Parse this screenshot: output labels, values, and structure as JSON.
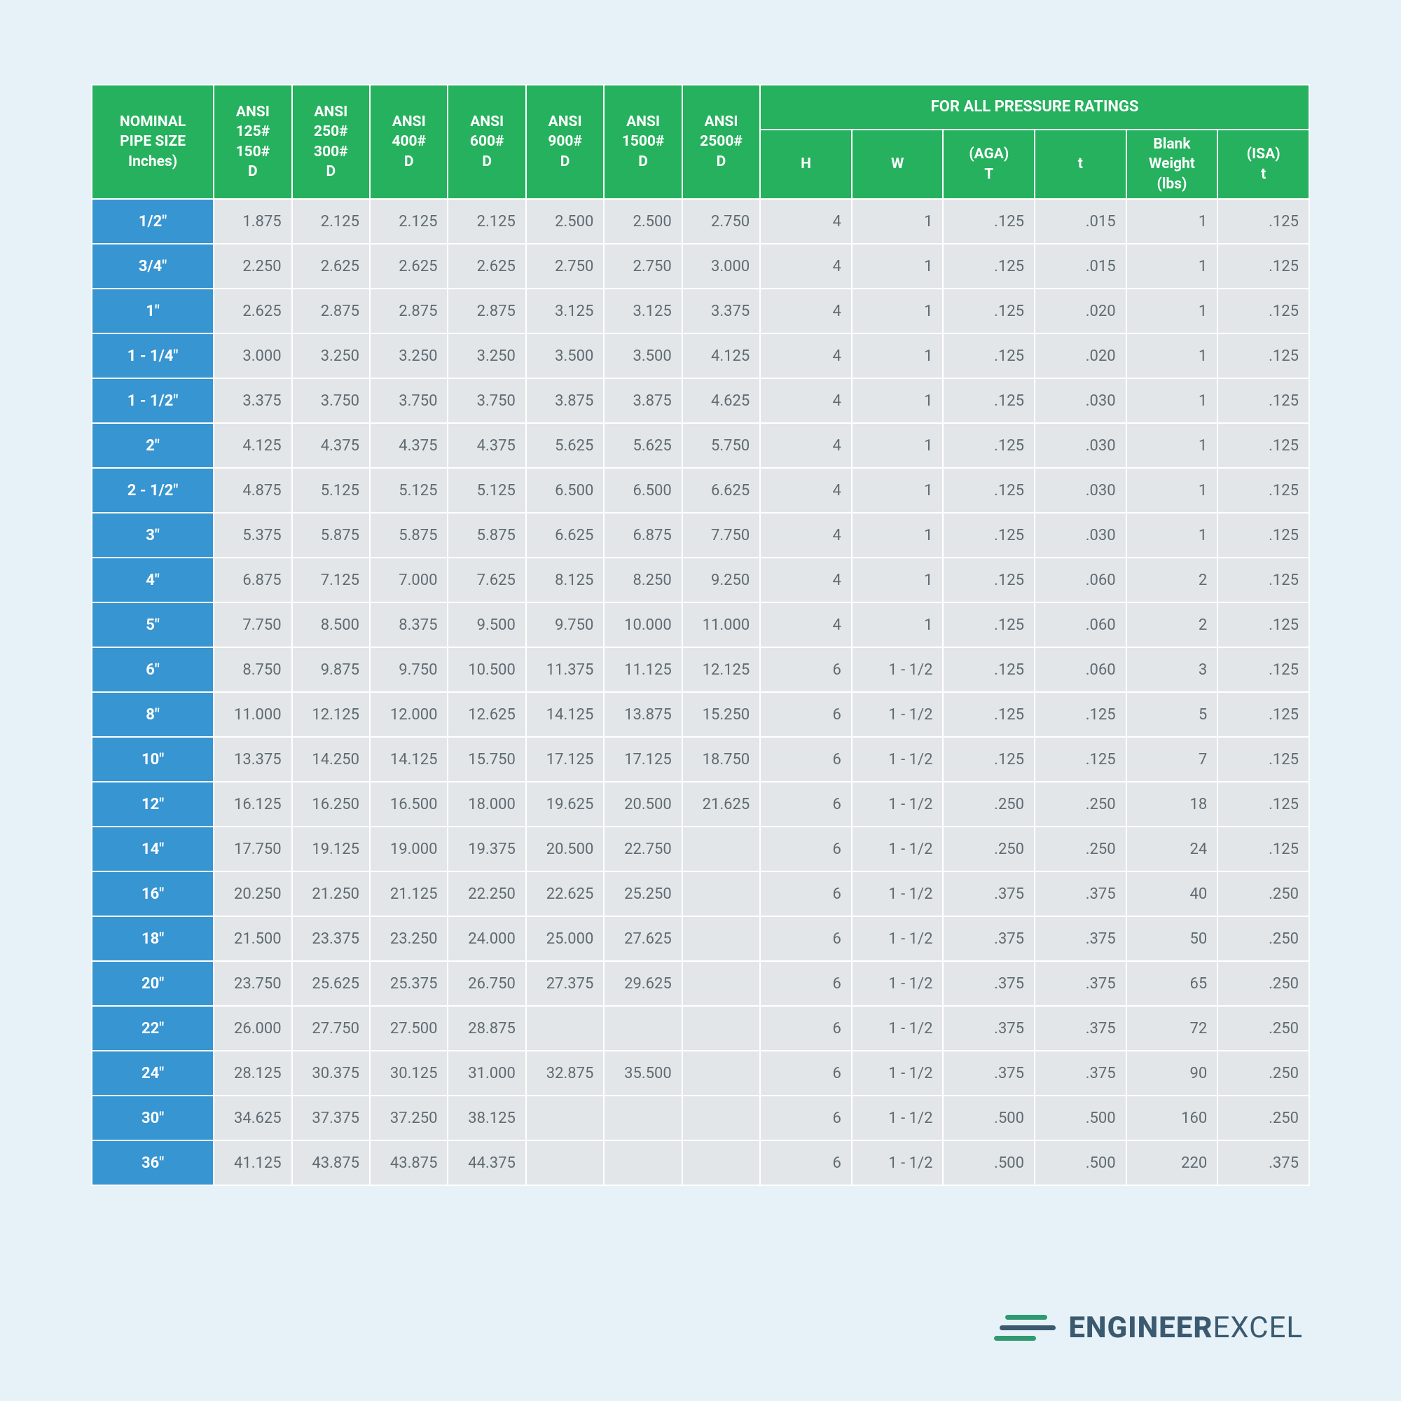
{
  "headers": {
    "nominal": "NOMINAL\nPIPE SIZE\nInches)",
    "ansi": [
      "ANSI\n125#\n150#\nD",
      "ANSI\n250#\n300#\nD",
      "ANSI\n400#\nD",
      "ANSI\n600#\nD",
      "ANSI\n900#\nD",
      "ANSI\n1500#\nD",
      "ANSI\n2500#\nD"
    ],
    "section": "FOR ALL PRESSURE RATINGS",
    "pr": [
      "H",
      "W",
      "(AGA)\nT",
      "t",
      "Blank\nWeight\n(lbs)",
      "(ISA)\nt"
    ]
  },
  "rows": [
    {
      "size": "1/2\"",
      "v": [
        "1.875",
        "2.125",
        "2.125",
        "2.125",
        "2.500",
        "2.500",
        "2.750",
        "4",
        "1",
        ".125",
        ".015",
        "1",
        ".125"
      ]
    },
    {
      "size": "3/4\"",
      "v": [
        "2.250",
        "2.625",
        "2.625",
        "2.625",
        "2.750",
        "2.750",
        "3.000",
        "4",
        "1",
        ".125",
        ".015",
        "1",
        ".125"
      ]
    },
    {
      "size": "1\"",
      "v": [
        "2.625",
        "2.875",
        "2.875",
        "2.875",
        "3.125",
        "3.125",
        "3.375",
        "4",
        "1",
        ".125",
        ".020",
        "1",
        ".125"
      ]
    },
    {
      "size": "1 - 1/4\"",
      "v": [
        "3.000",
        "3.250",
        "3.250",
        "3.250",
        "3.500",
        "3.500",
        "4.125",
        "4",
        "1",
        ".125",
        ".020",
        "1",
        ".125"
      ]
    },
    {
      "size": "1 - 1/2\"",
      "v": [
        "3.375",
        "3.750",
        "3.750",
        "3.750",
        "3.875",
        "3.875",
        "4.625",
        "4",
        "1",
        ".125",
        ".030",
        "1",
        ".125"
      ]
    },
    {
      "size": "2\"",
      "v": [
        "4.125",
        "4.375",
        "4.375",
        "4.375",
        "5.625",
        "5.625",
        "5.750",
        "4",
        "1",
        ".125",
        ".030",
        "1",
        ".125"
      ]
    },
    {
      "size": "2 - 1/2\"",
      "v": [
        "4.875",
        "5.125",
        "5.125",
        "5.125",
        "6.500",
        "6.500",
        "6.625",
        "4",
        "1",
        ".125",
        ".030",
        "1",
        ".125"
      ]
    },
    {
      "size": "3\"",
      "v": [
        "5.375",
        "5.875",
        "5.875",
        "5.875",
        "6.625",
        "6.875",
        "7.750",
        "4",
        "1",
        ".125",
        ".030",
        "1",
        ".125"
      ]
    },
    {
      "size": "4\"",
      "v": [
        "6.875",
        "7.125",
        "7.000",
        "7.625",
        "8.125",
        "8.250",
        "9.250",
        "4",
        "1",
        ".125",
        ".060",
        "2",
        ".125"
      ]
    },
    {
      "size": "5\"",
      "v": [
        "7.750",
        "8.500",
        "8.375",
        "9.500",
        "9.750",
        "10.000",
        "11.000",
        "4",
        "1",
        ".125",
        ".060",
        "2",
        ".125"
      ]
    },
    {
      "size": "6\"",
      "v": [
        "8.750",
        "9.875",
        "9.750",
        "10.500",
        "11.375",
        "11.125",
        "12.125",
        "6",
        "1 - 1/2",
        ".125",
        ".060",
        "3",
        ".125"
      ]
    },
    {
      "size": "8\"",
      "v": [
        "11.000",
        "12.125",
        "12.000",
        "12.625",
        "14.125",
        "13.875",
        "15.250",
        "6",
        "1 - 1/2",
        ".125",
        ".125",
        "5",
        ".125"
      ]
    },
    {
      "size": "10\"",
      "v": [
        "13.375",
        "14.250",
        "14.125",
        "15.750",
        "17.125",
        "17.125",
        "18.750",
        "6",
        "1 - 1/2",
        ".125",
        ".125",
        "7",
        ".125"
      ]
    },
    {
      "size": "12\"",
      "v": [
        "16.125",
        "16.250",
        "16.500",
        "18.000",
        "19.625",
        "20.500",
        "21.625",
        "6",
        "1 - 1/2",
        ".250",
        ".250",
        "18",
        ".125"
      ]
    },
    {
      "size": "14\"",
      "v": [
        "17.750",
        "19.125",
        "19.000",
        "19.375",
        "20.500",
        "22.750",
        "",
        "6",
        "1 - 1/2",
        ".250",
        ".250",
        "24",
        ".125"
      ]
    },
    {
      "size": "16\"",
      "v": [
        "20.250",
        "21.250",
        "21.125",
        "22.250",
        "22.625",
        "25.250",
        "",
        "6",
        "1 - 1/2",
        ".375",
        ".375",
        "40",
        ".250"
      ]
    },
    {
      "size": "18\"",
      "v": [
        "21.500",
        "23.375",
        "23.250",
        "24.000",
        "25.000",
        "27.625",
        "",
        "6",
        "1 - 1/2",
        ".375",
        ".375",
        "50",
        ".250"
      ]
    },
    {
      "size": "20\"",
      "v": [
        "23.750",
        "25.625",
        "25.375",
        "26.750",
        "27.375",
        "29.625",
        "",
        "6",
        "1 - 1/2",
        ".375",
        ".375",
        "65",
        ".250"
      ]
    },
    {
      "size": "22\"",
      "v": [
        "26.000",
        "27.750",
        "27.500",
        "28.875",
        "",
        "",
        "",
        "6",
        "1 - 1/2",
        ".375",
        ".375",
        "72",
        ".250"
      ]
    },
    {
      "size": "24\"",
      "v": [
        "28.125",
        "30.375",
        "30.125",
        "31.000",
        "32.875",
        "35.500",
        "",
        "6",
        "1 - 1/2",
        ".375",
        ".375",
        "90",
        ".250"
      ]
    },
    {
      "size": "30\"",
      "v": [
        "34.625",
        "37.375",
        "37.250",
        "38.125",
        "",
        "",
        "",
        "6",
        "1 - 1/2",
        ".500",
        ".500",
        "160",
        ".250"
      ]
    },
    {
      "size": "36\"",
      "v": [
        "41.125",
        "43.875",
        "43.875",
        "44.375",
        "",
        "",
        "",
        "6",
        "1 - 1/2",
        ".500",
        ".500",
        "220",
        ".375"
      ]
    }
  ],
  "logo": {
    "bold": "ENGINEER",
    "light": "EXCEL"
  },
  "colors": {
    "page_bg": "#e6f2f7",
    "header_bg": "#25b15d",
    "header_fg": "#ffffff",
    "size_bg": "#3795d1",
    "cell_bg": "#e3e6e8",
    "cell_fg": "#5f6b73"
  }
}
